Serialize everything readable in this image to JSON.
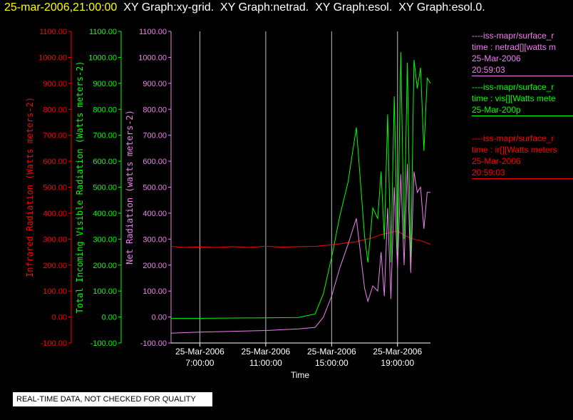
{
  "header": {
    "date": "25-mar-2006,21:00:00",
    "rest": "  XY Graph:xy-grid.  XY Graph:netrad.  XY Graph:esol.  XY Graph:esol.0."
  },
  "colors": {
    "infrared": "#ff0000",
    "visible": "#00ff00",
    "net": "#ee82ee",
    "axis": "#ffffff",
    "grid": "#c0c0c0"
  },
  "legend": [
    {
      "color": "#ee82ee",
      "lines": [
        "----iss-mapr/surface_r",
        "time : netrad[][watts m",
        "25-Mar-2006",
        "20:59:03"
      ]
    },
    {
      "color": "#00ff00",
      "lines": [
        "----iss-mapr/surface_r",
        "time : vis[][Watts mete",
        "25-Mar-200p"
      ]
    },
    {
      "color": "#ff0000",
      "lines": [
        "----iss-mapr/surface_r",
        "time : ir[][Watts meters",
        "25-Mar-2006",
        "20:59:03"
      ]
    }
  ],
  "notice": "REAL-TIME DATA, NOT CHECKED FOR QUALITY",
  "chart_data": {
    "type": "line",
    "xlabel": "Time",
    "x_ticks": [
      {
        "hour": 7,
        "date": "25-Mar-2006",
        "time": "7:00:00"
      },
      {
        "hour": 11,
        "date": "25-Mar-2006",
        "time": "11:00:00"
      },
      {
        "hour": 15,
        "date": "25-Mar-2006",
        "time": "15:00:00"
      },
      {
        "hour": 19,
        "date": "25-Mar-2006",
        "time": "19:00:00"
      }
    ],
    "xlim": [
      5.25,
      21.0
    ],
    "ylim": [
      -100,
      1100
    ],
    "y_ticks": [
      "-100.00",
      "0.00",
      "100.00",
      "200.00",
      "300.00",
      "400.00",
      "500.00",
      "600.00",
      "700.00",
      "800.00",
      "900.00",
      "1000.00",
      "1100.00"
    ],
    "y_tick_values": [
      -100,
      0,
      100,
      200,
      300,
      400,
      500,
      600,
      700,
      800,
      900,
      1000,
      1100
    ],
    "grid": {
      "vertical": true,
      "horizontal": false
    },
    "axes": [
      {
        "label": "Infrared Radiation (Watts meters-2)",
        "color": "#ff0000"
      },
      {
        "label": "Total Incoming Visible Radiation (Watts meters-2)",
        "color": "#00ff00"
      },
      {
        "label": "Net Radiation (watts meters-2)",
        "color": "#ee82ee"
      }
    ],
    "series": [
      {
        "color": "#ff0000",
        "x": [
          5.25,
          6,
          7,
          8,
          9,
          10,
          11,
          12,
          13,
          14,
          14.5,
          15,
          15.5,
          16,
          16.5,
          17,
          17.5,
          18,
          18.5,
          19,
          19.5,
          20,
          20.5,
          21
        ],
        "y": [
          272,
          268,
          270,
          268,
          271,
          268,
          273,
          269,
          271,
          272,
          275,
          278,
          282,
          286,
          290,
          298,
          305,
          318,
          324,
          332,
          312,
          300,
          292,
          280
        ]
      },
      {
        "color": "#00ff00",
        "x": [
          5.25,
          7,
          9,
          11,
          13,
          14,
          14.5,
          15,
          15.5,
          16,
          16.5,
          17,
          17.2,
          17.5,
          17.8,
          18,
          18.2,
          18.4,
          18.6,
          18.8,
          19,
          19.2,
          19.4,
          19.6,
          19.8,
          20,
          20.2,
          20.4,
          20.6,
          20.8,
          21
        ],
        "y": [
          -5,
          -5,
          -4,
          -3,
          -2,
          12,
          90,
          230,
          390,
          520,
          730,
          310,
          210,
          420,
          380,
          560,
          300,
          780,
          210,
          850,
          250,
          1020,
          300,
          980,
          200,
          990,
          880,
          960,
          640,
          920,
          900
        ]
      },
      {
        "color": "#ee82ee",
        "x": [
          5.25,
          7,
          9,
          11,
          13,
          14,
          14.5,
          15,
          15.5,
          16,
          16.5,
          17,
          17.2,
          17.5,
          17.8,
          18,
          18.2,
          18.4,
          18.6,
          18.8,
          19,
          19.2,
          19.4,
          19.6,
          19.8,
          20,
          20.2,
          20.4,
          20.6,
          20.8,
          21
        ],
        "y": [
          -62,
          -58,
          -55,
          -52,
          -46,
          -40,
          0,
          80,
          190,
          280,
          380,
          110,
          60,
          120,
          100,
          250,
          80,
          420,
          70,
          500,
          190,
          550,
          200,
          590,
          170,
          560,
          480,
          500,
          340,
          480,
          480
        ]
      }
    ]
  }
}
